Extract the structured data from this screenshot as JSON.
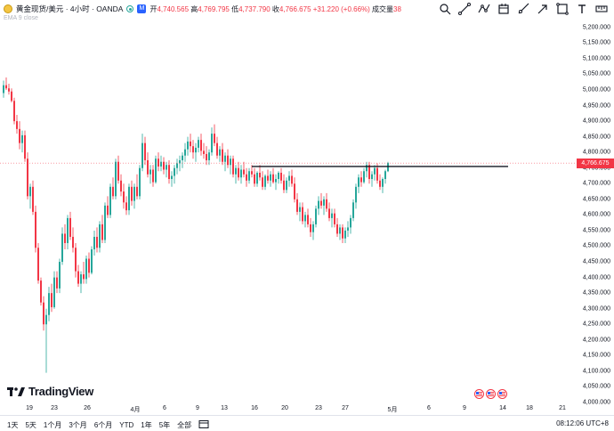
{
  "header": {
    "symbol_name": "黄金现货/美元 · 4小时 · OANDA",
    "badge": "M",
    "ohlc": {
      "open_label": "开",
      "open": "4,740.565",
      "high_label": "高",
      "high": "4,769.795",
      "low_label": "低",
      "low": "4,737.790",
      "close_label": "收",
      "close": "4,766.675",
      "change": "+31.220 (+0.66%)",
      "volume_label": "成交量",
      "volume": "38"
    },
    "indicator": "EMA 9 close"
  },
  "toolbar": {
    "tools": [
      "zoom-icon",
      "trend-line-icon",
      "polyline-icon",
      "calendar-icon",
      "ray-icon",
      "arrow-icon",
      "rectangle-icon",
      "text-tool-icon",
      "ruler-icon"
    ]
  },
  "price_axis": {
    "ticks": [
      "5,200.000",
      "5,150.000",
      "5,100.000",
      "5,050.000",
      "5,000.000",
      "4,950.000",
      "4,900.000",
      "4,850.000",
      "4,800.000",
      "4,750.000",
      "4,700.000",
      "4,650.000",
      "4,600.000",
      "4,550.000",
      "4,500.000",
      "4,450.000",
      "4,400.000",
      "4,350.000",
      "4,300.000",
      "4,250.000",
      "4,200.000",
      "4,150.000",
      "4,100.000",
      "4,050.000",
      "4,000.000"
    ],
    "current_price": "4,766.675"
  },
  "time_axis": {
    "ticks": [
      "19",
      "23",
      "26",
      "4月",
      "6",
      "9",
      "13",
      "16",
      "20",
      "23",
      "27",
      "5月",
      "6",
      "9",
      "14",
      "18",
      "21"
    ]
  },
  "bottom": {
    "ranges": [
      "1天",
      "5天",
      "1个月",
      "3个月",
      "6个月",
      "YTD",
      "1年",
      "5年",
      "全部"
    ],
    "clock": "08:12:06 UTC+8"
  },
  "logo": {
    "text": "TradingView"
  },
  "colors": {
    "up": "#26a69a",
    "down": "#f23645",
    "line": "#131722",
    "badge": "#2962ff"
  },
  "chart_data": {
    "type": "candlestick",
    "ylim": [
      4000,
      5225
    ],
    "horizontal_line": {
      "price": 4755,
      "from_index": 93,
      "to_index": 179
    },
    "series": [
      {
        "values": [
          [
            4990,
            5030,
            4975,
            5015
          ],
          [
            5015,
            5040,
            5000,
            5005
          ],
          [
            5005,
            5020,
            4985,
            4995
          ],
          [
            4995,
            5005,
            4960,
            4965
          ],
          [
            4965,
            4975,
            4890,
            4900
          ],
          [
            4900,
            4920,
            4860,
            4875
          ],
          [
            4875,
            4900,
            4810,
            4830
          ],
          [
            4830,
            4870,
            4800,
            4855
          ],
          [
            4855,
            4870,
            4770,
            4780
          ],
          [
            4780,
            4800,
            4650,
            4660
          ],
          [
            4660,
            4700,
            4620,
            4690
          ],
          [
            4690,
            4710,
            4600,
            4610
          ],
          [
            4610,
            4630,
            4480,
            4495
          ],
          [
            4495,
            4510,
            4380,
            4390
          ],
          [
            4390,
            4400,
            4310,
            4320
          ],
          [
            4320,
            4340,
            4230,
            4250
          ],
          [
            4250,
            4300,
            4095,
            4280
          ],
          [
            4280,
            4370,
            4260,
            4350
          ],
          [
            4350,
            4380,
            4290,
            4305
          ],
          [
            4305,
            4420,
            4300,
            4400
          ],
          [
            4400,
            4420,
            4350,
            4365
          ],
          [
            4365,
            4460,
            4350,
            4450
          ],
          [
            4450,
            4560,
            4440,
            4540
          ],
          [
            4540,
            4570,
            4490,
            4510
          ],
          [
            4510,
            4600,
            4490,
            4590
          ],
          [
            4590,
            4610,
            4520,
            4530
          ],
          [
            4530,
            4560,
            4480,
            4495
          ],
          [
            4495,
            4510,
            4400,
            4420
          ],
          [
            4420,
            4440,
            4370,
            4380
          ],
          [
            4380,
            4420,
            4350,
            4410
          ],
          [
            4410,
            4450,
            4380,
            4395
          ],
          [
            4395,
            4470,
            4380,
            4460
          ],
          [
            4460,
            4480,
            4400,
            4415
          ],
          [
            4415,
            4500,
            4410,
            4490
          ],
          [
            4490,
            4550,
            4470,
            4530
          ],
          [
            4530,
            4560,
            4480,
            4495
          ],
          [
            4495,
            4580,
            4480,
            4570
          ],
          [
            4570,
            4600,
            4510,
            4520
          ],
          [
            4520,
            4640,
            4510,
            4630
          ],
          [
            4630,
            4660,
            4590,
            4600
          ],
          [
            4600,
            4700,
            4590,
            4690
          ],
          [
            4690,
            4720,
            4650,
            4660
          ],
          [
            4660,
            4780,
            4650,
            4770
          ],
          [
            4770,
            4790,
            4700,
            4710
          ],
          [
            4710,
            4730,
            4660,
            4675
          ],
          [
            4675,
            4700,
            4620,
            4640
          ],
          [
            4640,
            4660,
            4600,
            4615
          ],
          [
            4615,
            4700,
            4600,
            4690
          ],
          [
            4690,
            4710,
            4630,
            4645
          ],
          [
            4645,
            4700,
            4620,
            4690
          ],
          [
            4690,
            4730,
            4650,
            4660
          ],
          [
            4660,
            4760,
            4650,
            4750
          ],
          [
            4750,
            4860,
            4740,
            4830
          ],
          [
            4830,
            4850,
            4760,
            4775
          ],
          [
            4775,
            4800,
            4720,
            4730
          ],
          [
            4730,
            4760,
            4700,
            4745
          ],
          [
            4745,
            4760,
            4690,
            4705
          ],
          [
            4705,
            4790,
            4700,
            4780
          ],
          [
            4780,
            4800,
            4740,
            4755
          ],
          [
            4755,
            4790,
            4740,
            4770
          ],
          [
            4770,
            4785,
            4730,
            4745
          ],
          [
            4745,
            4770,
            4720,
            4760
          ],
          [
            4760,
            4775,
            4700,
            4715
          ],
          [
            4715,
            4740,
            4690,
            4725
          ],
          [
            4725,
            4760,
            4700,
            4750
          ],
          [
            4750,
            4780,
            4730,
            4765
          ],
          [
            4765,
            4790,
            4740,
            4775
          ],
          [
            4775,
            4800,
            4750,
            4790
          ],
          [
            4790,
            4830,
            4770,
            4810
          ],
          [
            4810,
            4850,
            4790,
            4835
          ],
          [
            4835,
            4860,
            4800,
            4820
          ],
          [
            4820,
            4840,
            4780,
            4800
          ],
          [
            4800,
            4830,
            4770,
            4815
          ],
          [
            4815,
            4850,
            4800,
            4840
          ],
          [
            4840,
            4860,
            4790,
            4805
          ],
          [
            4805,
            4830,
            4780,
            4795
          ],
          [
            4795,
            4820,
            4760,
            4775
          ],
          [
            4775,
            4810,
            4760,
            4800
          ],
          [
            4800,
            4880,
            4790,
            4860
          ],
          [
            4860,
            4890,
            4820,
            4830
          ],
          [
            4830,
            4850,
            4780,
            4790
          ],
          [
            4790,
            4820,
            4770,
            4810
          ],
          [
            4810,
            4830,
            4760,
            4770
          ],
          [
            4770,
            4800,
            4740,
            4790
          ],
          [
            4790,
            4810,
            4750,
            4760
          ],
          [
            4760,
            4790,
            4730,
            4780
          ],
          [
            4780,
            4790,
            4720,
            4730
          ],
          [
            4730,
            4760,
            4700,
            4750
          ],
          [
            4750,
            4770,
            4710,
            4720
          ],
          [
            4720,
            4760,
            4700,
            4745
          ],
          [
            4745,
            4770,
            4720,
            4730
          ],
          [
            4730,
            4750,
            4690,
            4710
          ],
          [
            4710,
            4750,
            4700,
            4740
          ],
          [
            4740,
            4760,
            4720,
            4730
          ],
          [
            4730,
            4750,
            4690,
            4700
          ],
          [
            4700,
            4740,
            4690,
            4735
          ],
          [
            4735,
            4760,
            4710,
            4720
          ],
          [
            4720,
            4740,
            4680,
            4690
          ],
          [
            4690,
            4730,
            4680,
            4725
          ],
          [
            4725,
            4745,
            4700,
            4710
          ],
          [
            4710,
            4740,
            4690,
            4730
          ],
          [
            4730,
            4750,
            4700,
            4705
          ],
          [
            4705,
            4730,
            4680,
            4715
          ],
          [
            4715,
            4740,
            4700,
            4735
          ],
          [
            4735,
            4750,
            4700,
            4710
          ],
          [
            4710,
            4730,
            4670,
            4680
          ],
          [
            4680,
            4720,
            4670,
            4710
          ],
          [
            4710,
            4740,
            4690,
            4725
          ],
          [
            4725,
            4745,
            4690,
            4700
          ],
          [
            4700,
            4720,
            4640,
            4650
          ],
          [
            4650,
            4670,
            4600,
            4610
          ],
          [
            4610,
            4640,
            4580,
            4625
          ],
          [
            4625,
            4640,
            4570,
            4580
          ],
          [
            4580,
            4610,
            4560,
            4600
          ],
          [
            4600,
            4620,
            4560,
            4570
          ],
          [
            4570,
            4590,
            4530,
            4545
          ],
          [
            4545,
            4580,
            4520,
            4570
          ],
          [
            4570,
            4630,
            4560,
            4620
          ],
          [
            4620,
            4660,
            4600,
            4645
          ],
          [
            4645,
            4670,
            4620,
            4630
          ],
          [
            4630,
            4660,
            4600,
            4650
          ],
          [
            4650,
            4670,
            4610,
            4620
          ],
          [
            4620,
            4640,
            4580,
            4590
          ],
          [
            4590,
            4620,
            4560,
            4605
          ],
          [
            4605,
            4620,
            4560,
            4570
          ],
          [
            4570,
            4590,
            4530,
            4540
          ],
          [
            4540,
            4570,
            4520,
            4560
          ],
          [
            4560,
            4570,
            4510,
            4525
          ],
          [
            4525,
            4560,
            4510,
            4550
          ],
          [
            4550,
            4580,
            4530,
            4560
          ],
          [
            4560,
            4600,
            4540,
            4590
          ],
          [
            4590,
            4650,
            4580,
            4640
          ],
          [
            4640,
            4700,
            4620,
            4690
          ],
          [
            4690,
            4730,
            4670,
            4720
          ],
          [
            4720,
            4740,
            4690,
            4705
          ],
          [
            4705,
            4750,
            4700,
            4740
          ],
          [
            4740,
            4770,
            4720,
            4760
          ],
          [
            4760,
            4770,
            4700,
            4715
          ],
          [
            4715,
            4740,
            4690,
            4730
          ],
          [
            4730,
            4760,
            4710,
            4750
          ],
          [
            4750,
            4765,
            4700,
            4710
          ],
          [
            4710,
            4730,
            4680,
            4690
          ],
          [
            4690,
            4720,
            4670,
            4715
          ],
          [
            4715,
            4745,
            4700,
            4740
          ],
          [
            4740,
            4770,
            4737,
            4766
          ]
        ]
      }
    ]
  }
}
